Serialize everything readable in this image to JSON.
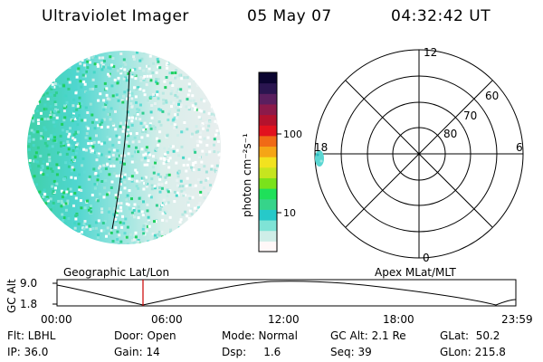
{
  "header": {
    "instrument": "Ultraviolet Imager",
    "date": "05 May 07",
    "time": "04:32:42 UT"
  },
  "colorbar": {
    "label": "photon cm⁻²s⁻¹",
    "ticks": [
      "100",
      "10"
    ],
    "colors": [
      "#fff8f8",
      "#cfeee8",
      "#7fe3d6",
      "#26c9c9",
      "#36d48a",
      "#1fe05a",
      "#7ae21b",
      "#c6e51f",
      "#f2e21f",
      "#f5a516",
      "#f06a16",
      "#e2121e",
      "#b4122d",
      "#8c1a4a",
      "#5a1f5f",
      "#2a1550",
      "#0b0430"
    ]
  },
  "polar_plot": {
    "mlt_labels": [
      "12",
      "18",
      "6",
      "0"
    ],
    "lat_labels": [
      "60",
      "70",
      "80"
    ]
  },
  "timeline": {
    "left_caption": "Geographic Lat/Lon",
    "right_caption": "Apex MLat/MLT",
    "ylabel": "GC Alt",
    "y_ticks": [
      "9.0",
      "1.8"
    ],
    "x_ticks": [
      "00:00",
      "06:00",
      "12:00",
      "18:00",
      "23:59"
    ]
  },
  "footer": {
    "flt": "Flt: LBHL",
    "ip": "IP: 36.0",
    "door": "Door: Open",
    "gain": "Gain: 14",
    "mode": "Mode: Normal",
    "dsp": "Dsp:     1.6",
    "gc_alt": "GC Alt: 2.1 Re",
    "seq": "Seq: 39",
    "glat": "GLat:  50.2",
    "glon": "GLon: 215.8"
  },
  "colors": {
    "cursor_line": "#cc0000",
    "aurora_spot": "#5ad6d2"
  }
}
